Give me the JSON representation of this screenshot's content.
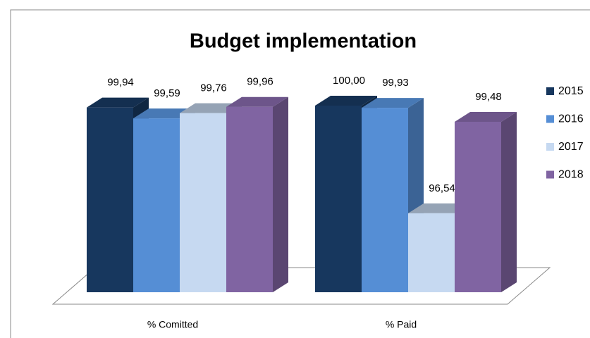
{
  "chart_data": {
    "type": "bar3d",
    "title": "Budget implementation",
    "categories": [
      "% Comitted",
      "% Paid"
    ],
    "series": [
      {
        "name": "2015",
        "color": "#17375e",
        "values": [
          99.94,
          100.0
        ],
        "value_labels": [
          "99,94",
          "100,00"
        ]
      },
      {
        "name": "2016",
        "color": "#558ed5",
        "values": [
          99.59,
          99.93
        ],
        "value_labels": [
          "99,59",
          "99,93"
        ]
      },
      {
        "name": "2017",
        "color": "#c6d9f1",
        "values": [
          99.76,
          96.54
        ],
        "value_labels": [
          "99,76",
          "96,54"
        ]
      },
      {
        "name": "2018",
        "color": "#8064a2",
        "values": [
          99.96,
          99.48
        ],
        "value_labels": [
          "99,96",
          "99,48"
        ]
      }
    ],
    "ylim": [
      94,
      100
    ],
    "legend": "right"
  }
}
